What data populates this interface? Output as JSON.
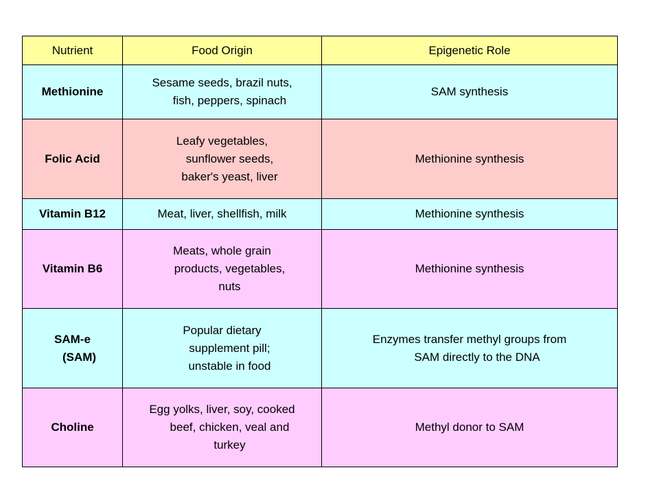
{
  "colors": {
    "header_bg": "#ffff9e",
    "cyan_bg": "#ccffff",
    "pink_bg": "#ffcccc",
    "lavender_bg": "#ffccff",
    "border": "#000000"
  },
  "table": {
    "headers": [
      "Nutrient",
      "Food Origin",
      "Epigenetic Role"
    ],
    "rows": [
      {
        "nutrient": [
          "Methionine"
        ],
        "origin": [
          "Sesame seeds, brazil nuts,",
          "fish, peppers, spinach"
        ],
        "role": [
          "SAM synthesis"
        ],
        "bg": "cyan_bg",
        "height": 79
      },
      {
        "nutrient": [
          "Folic Acid"
        ],
        "origin": [
          "Leafy vegetables,",
          "sunflower seeds,",
          "baker's yeast, liver"
        ],
        "role": [
          "Methionine synthesis"
        ],
        "bg": "pink_bg",
        "height": 116
      },
      {
        "nutrient": [
          "Vitamin B12"
        ],
        "origin": [
          "Meat, liver, shellfish, milk"
        ],
        "role": [
          "Methionine synthesis"
        ],
        "bg": "cyan_bg",
        "height": 45
      },
      {
        "nutrient": [
          "Vitamin B6"
        ],
        "origin": [
          "Meats, whole grain",
          "products, vegetables,",
          "nuts"
        ],
        "role": [
          "Methionine synthesis"
        ],
        "bg": "lavender_bg",
        "height": 115
      },
      {
        "nutrient": [
          "SAM-e",
          "(SAM)"
        ],
        "origin": [
          "Popular dietary",
          "supplement pill;",
          "unstable in food"
        ],
        "role": [
          "Enzymes transfer methyl groups from",
          "SAM directly to the DNA"
        ],
        "bg": "cyan_bg",
        "height": 116
      },
      {
        "nutrient": [
          "Choline"
        ],
        "origin": [
          "Egg yolks, liver, soy, cooked",
          "beef, chicken, veal and",
          "turkey"
        ],
        "role": [
          "Methyl donor to SAM"
        ],
        "bg": "lavender_bg",
        "height": 115
      }
    ]
  }
}
